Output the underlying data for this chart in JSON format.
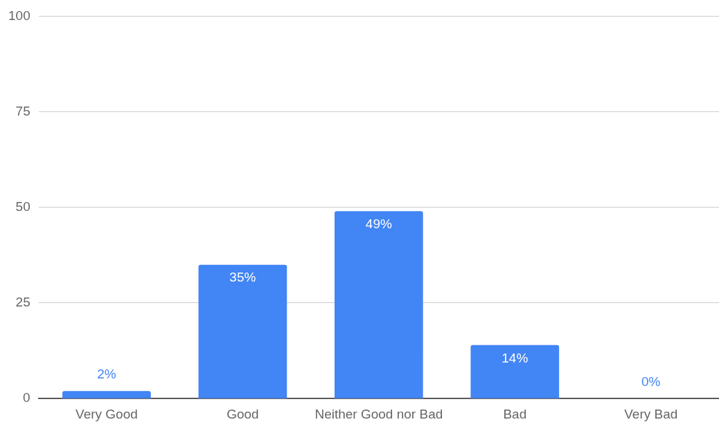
{
  "chart_data": {
    "type": "bar",
    "categories": [
      "Very Good",
      "Good",
      "Neither Good nor Bad",
      "Bad",
      "Very Bad"
    ],
    "values": [
      2,
      35,
      49,
      14,
      0
    ],
    "value_labels": [
      "2%",
      "35%",
      "49%",
      "14%",
      "0%"
    ],
    "color": "#4285f4",
    "ylim": [
      0,
      100
    ],
    "yticks": [
      0,
      25,
      50,
      75,
      100
    ],
    "grid": "y",
    "legend": false
  }
}
